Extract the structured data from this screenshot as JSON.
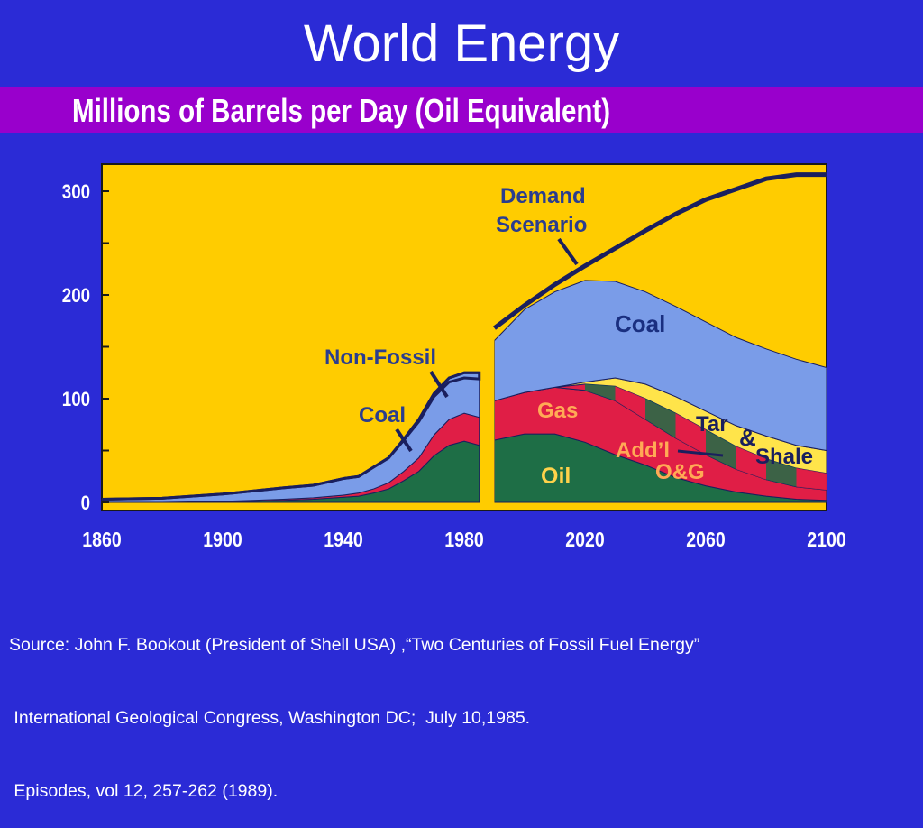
{
  "slide": {
    "title": "World Energy",
    "subtitle": "Millions of Barrels per Day (Oil Equivalent)",
    "source_lines": [
      "Source: John F. Bookout (President of Shell USA) ,“Two Centuries of Fossil Fuel Energy”",
      " International Geological Congress, Washington DC;  July 10,1985.",
      " Episodes, vol 12, 257-262 (1989)."
    ]
  },
  "colors": {
    "background": "#2b2bd6",
    "title_band": "#9900cc",
    "plot_fill": "#ffcc00",
    "oil": "#1e6e46",
    "gas": "#e01e46",
    "coal": "#7a9ce8",
    "tar_shale": "#ffe44a",
    "demand_line": "#1a1f5e"
  },
  "chart_data": {
    "type": "area",
    "title": "",
    "xlabel": "",
    "ylabel": "",
    "xlim": [
      1860,
      2100
    ],
    "ylim": [
      0,
      300
    ],
    "xticks": [
      "1860",
      "1900",
      "1940",
      "1980",
      "2020",
      "2060",
      "2100"
    ],
    "yticks": [
      "300",
      "200",
      "100",
      "0"
    ],
    "grid": false,
    "stacking": "cumulative",
    "historical": {
      "x": [
        1860,
        1880,
        1900,
        1910,
        1920,
        1930,
        1940,
        1945,
        1950,
        1955,
        1960,
        1965,
        1970,
        1975,
        1980,
        1985
      ],
      "series": [
        {
          "name": "Oil",
          "values": [
            0,
            0,
            0.5,
            1,
            2,
            3,
            5,
            6,
            9,
            13,
            21,
            30,
            45,
            55,
            59,
            55
          ]
        },
        {
          "name": "Gas",
          "values": [
            0,
            0,
            0.5,
            1,
            1,
            1.5,
            2,
            3,
            4,
            6,
            9,
            13,
            20,
            25,
            27,
            27
          ]
        },
        {
          "name": "Coal",
          "values": [
            3,
            4,
            7,
            9,
            11,
            12,
            16,
            16,
            21,
            24,
            30,
            35,
            37,
            36,
            34,
            37
          ]
        },
        {
          "name": "Non-Fossil",
          "values": [
            0,
            0,
            0,
            0,
            0,
            0,
            0,
            0,
            0,
            0,
            1,
            2,
            3,
            4,
            5,
            6
          ]
        }
      ]
    },
    "projection": {
      "x": [
        1990,
        2000,
        2010,
        2020,
        2030,
        2040,
        2050,
        2060,
        2070,
        2080,
        2090,
        2100
      ],
      "series": [
        {
          "name": "Oil",
          "values": [
            60,
            66,
            66,
            58,
            46,
            36,
            24,
            16,
            10,
            6,
            3,
            2
          ]
        },
        {
          "name": "Gas",
          "values": [
            38,
            40,
            45,
            50,
            52,
            44,
            38,
            30,
            22,
            16,
            12,
            10
          ]
        },
        {
          "name": "Add’l O&G",
          "values": [
            0,
            0,
            0,
            6,
            14,
            20,
            24,
            24,
            22,
            20,
            18,
            16
          ]
        },
        {
          "name": "Tar & Shale",
          "values": [
            0,
            0,
            0,
            2,
            8,
            14,
            16,
            18,
            20,
            22,
            22,
            22
          ]
        },
        {
          "name": "Coal",
          "values": [
            58,
            80,
            92,
            98,
            93,
            89,
            87,
            86,
            85,
            84,
            83,
            80
          ]
        }
      ],
      "demand": {
        "name": "Demand Scenario",
        "values": [
          168,
          190,
          210,
          228,
          245,
          262,
          278,
          292,
          302,
          312,
          316,
          316
        ]
      }
    },
    "annotations": [
      "Demand Scenario",
      "Non-Fossil",
      "Coal",
      "Coal",
      "Gas",
      "Tar",
      "&",
      "Shale",
      "Add’l",
      "O&G",
      "Oil"
    ]
  }
}
